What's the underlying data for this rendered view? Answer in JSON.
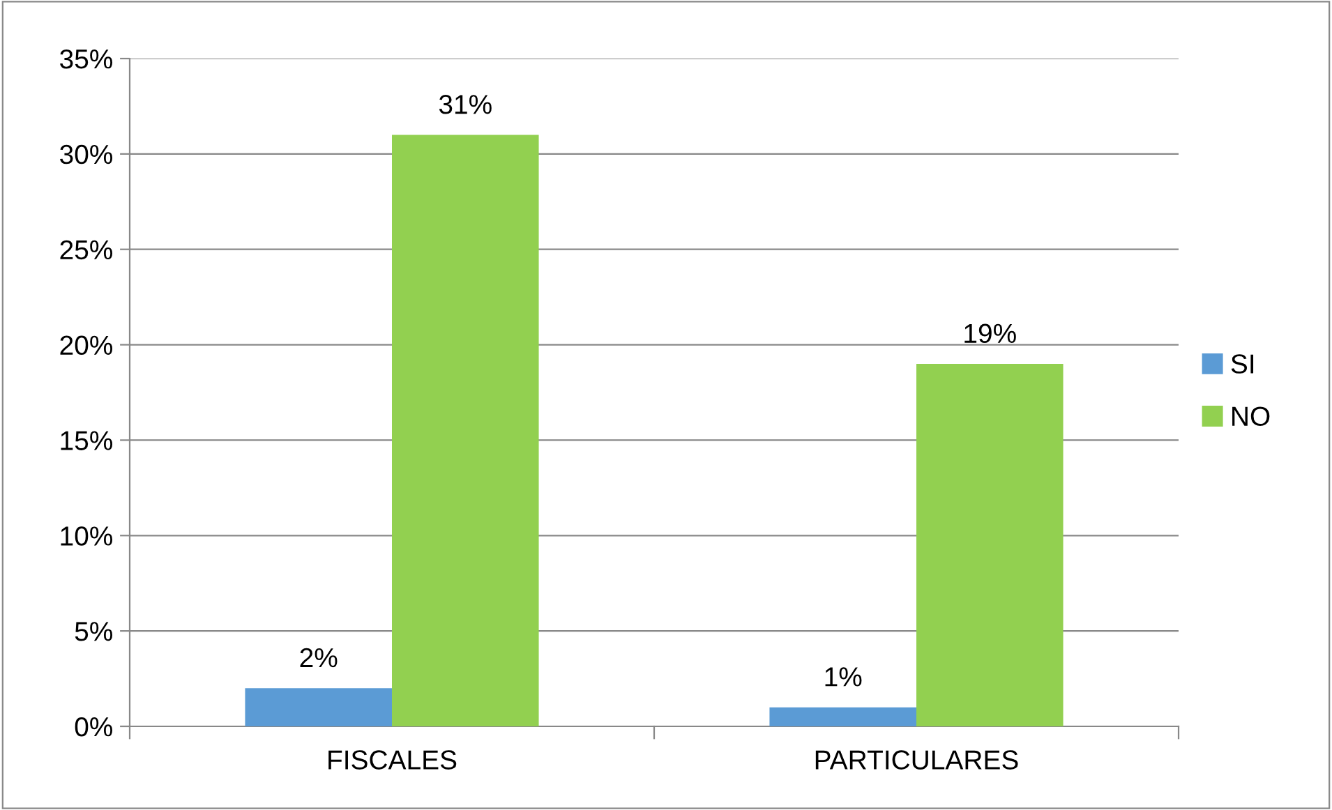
{
  "chart_data": {
    "type": "bar",
    "categories": [
      "FISCALES",
      "PARTICULARES"
    ],
    "series": [
      {
        "name": "SI",
        "color": "#5b9bd5",
        "values": [
          2,
          1
        ],
        "value_labels": [
          "2%",
          "1%"
        ]
      },
      {
        "name": "NO",
        "color": "#92d050",
        "values": [
          31,
          19
        ],
        "value_labels": [
          "31%",
          "19%"
        ]
      }
    ],
    "ylim": [
      0,
      35
    ],
    "yticks": [
      {
        "value": 0,
        "label": "0%"
      },
      {
        "value": 5,
        "label": "5%"
      },
      {
        "value": 10,
        "label": "10%"
      },
      {
        "value": 15,
        "label": "15%"
      },
      {
        "value": 20,
        "label": "20%"
      },
      {
        "value": 25,
        "label": "25%"
      },
      {
        "value": 30,
        "label": "30%"
      },
      {
        "value": 35,
        "label": "35%"
      }
    ],
    "grid": "y",
    "legend": "right"
  }
}
